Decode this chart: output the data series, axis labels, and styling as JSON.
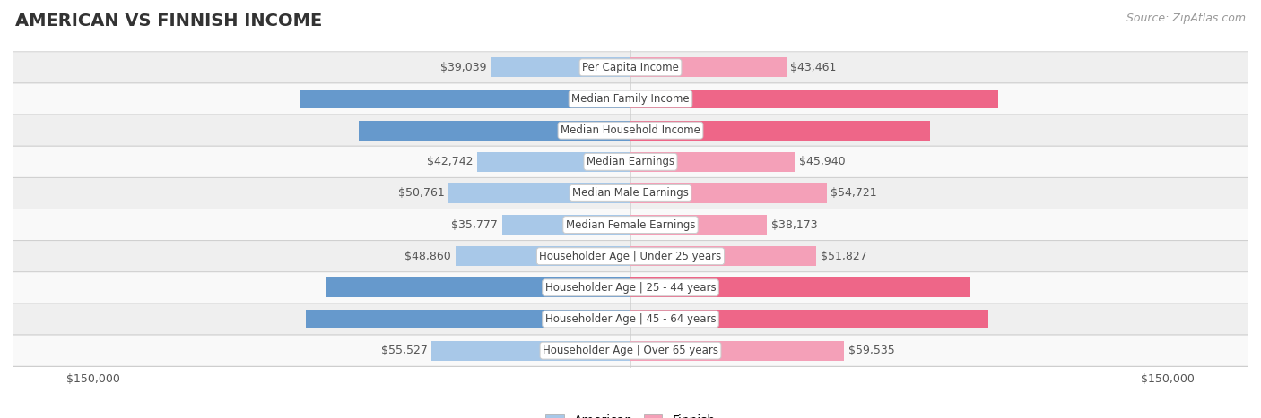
{
  "title": "AMERICAN VS FINNISH INCOME",
  "source": "Source: ZipAtlas.com",
  "categories": [
    "Per Capita Income",
    "Median Family Income",
    "Median Household Income",
    "Median Earnings",
    "Median Male Earnings",
    "Median Female Earnings",
    "Householder Age | Under 25 years",
    "Householder Age | 25 - 44 years",
    "Householder Age | 45 - 64 years",
    "Householder Age | Over 65 years"
  ],
  "american_values": [
    39039,
    92096,
    75932,
    42742,
    50761,
    35777,
    48860,
    84791,
    90536,
    55527
  ],
  "finnish_values": [
    43461,
    102676,
    83607,
    45940,
    54721,
    38173,
    51827,
    94610,
    99904,
    59535
  ],
  "american_color_light": "#a8c8e8",
  "american_color_dark": "#6699cc",
  "finnish_color_light": "#f4a0b8",
  "finnish_color_dark": "#ee6688",
  "american_label": "American",
  "finnish_label": "Finnish",
  "xlim": 150000,
  "large_threshold": 65000,
  "title_fontsize": 14,
  "source_fontsize": 9,
  "bar_label_fontsize": 9,
  "category_fontsize": 8.5,
  "axis_label_fontsize": 9,
  "row_colors": [
    "#efefef",
    "#f9f9f9"
  ]
}
